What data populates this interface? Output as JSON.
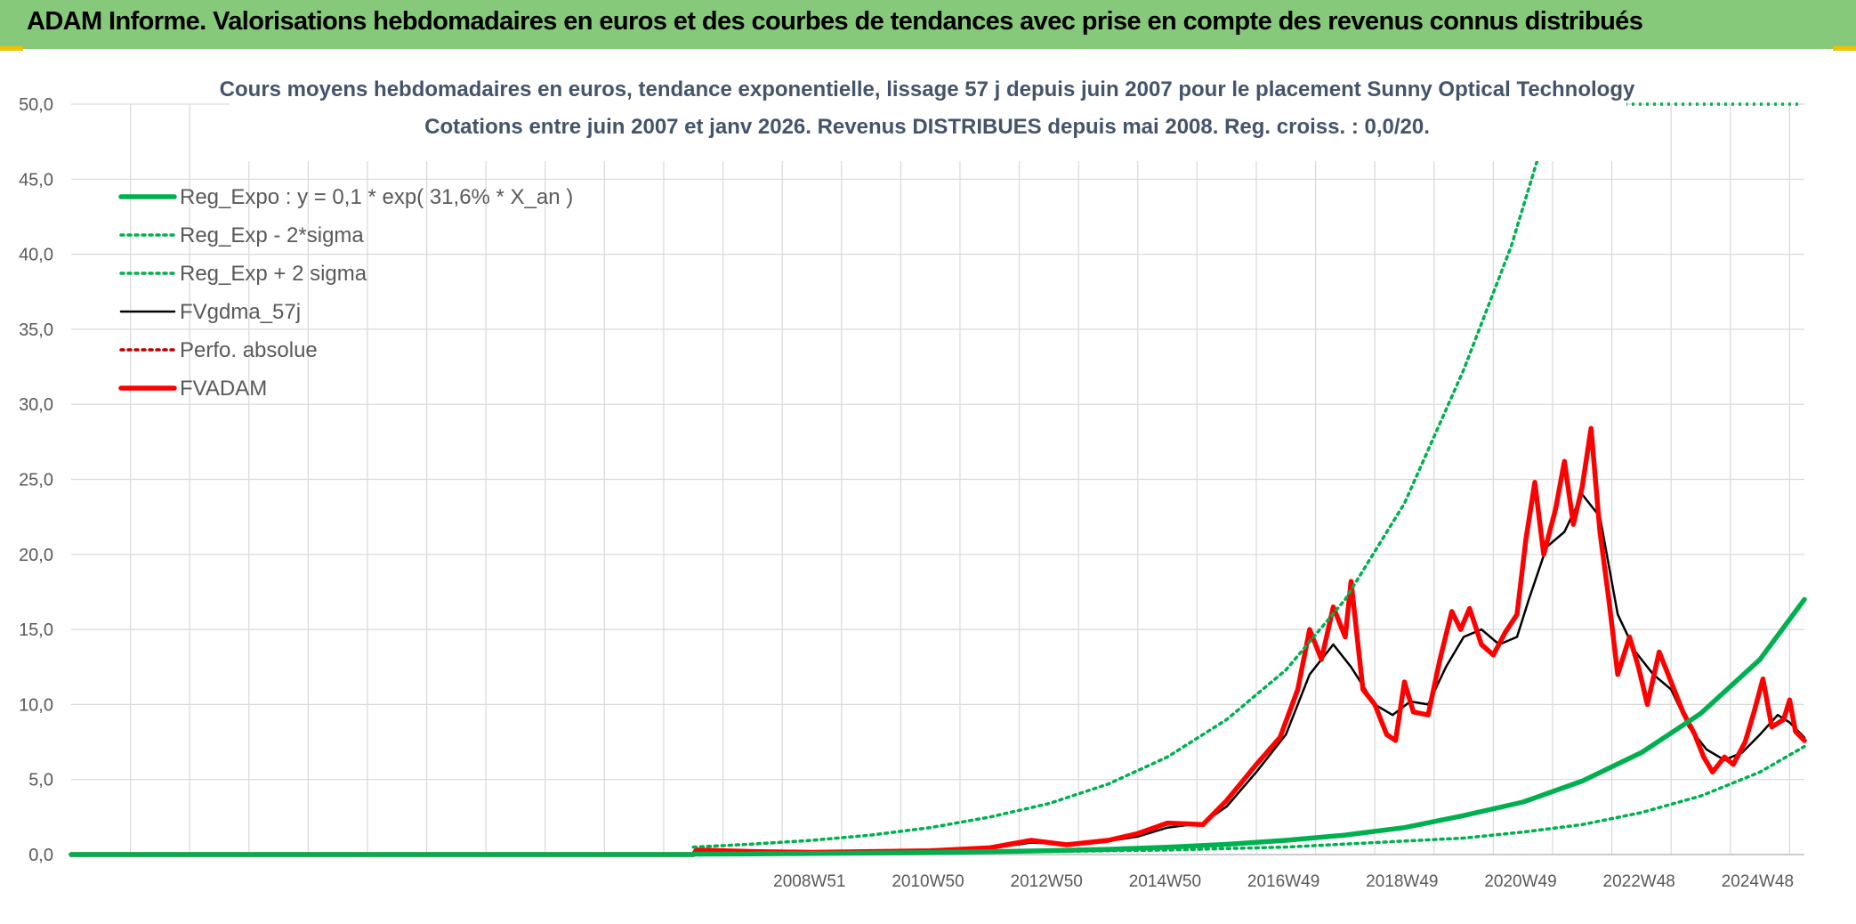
{
  "page": {
    "banner_title": "ADAM Informe. Valorisations hebdomadaires en euros et des courbes de tendances avec prise en compte des revenus connus distribués"
  },
  "colors": {
    "banner": "#86c97a",
    "grid": "#d9d9d9",
    "regression": "#00b050",
    "fvgdma": "#000000",
    "fvadam": "#ff0000",
    "perfo": "#c00000",
    "axis_text": "#595959",
    "title_text": "#44546a"
  },
  "chart_data": {
    "type": "line",
    "title": "Cours moyens hebdomadaires en euros, tendance exponentielle, lissage 57 j depuis juin 2007 pour le placement Sunny Optical Technology",
    "subtitle": "Cotations entre juin 2007 et janv 2026. Revenus DISTRIBUES depuis mai 2008. Reg. croiss. : 0,0/20.",
    "xlabel": "",
    "ylabel": "",
    "ylim": [
      0,
      50
    ],
    "xlim": [
      1996.5,
      2025.75
    ],
    "yticks": [
      "0,0",
      "5,0",
      "10,0",
      "15,0",
      "20,0",
      "25,0",
      "30,0",
      "35,0",
      "40,0",
      "45,0",
      "50,0"
    ],
    "xticks": [
      {
        "label": "2008W51",
        "x": 2008.96
      },
      {
        "label": "2010W50",
        "x": 2010.96
      },
      {
        "label": "2012W50",
        "x": 2012.96
      },
      {
        "label": "2014W50",
        "x": 2014.96
      },
      {
        "label": "2016W49",
        "x": 2016.96
      },
      {
        "label": "2018W49",
        "x": 2018.96
      },
      {
        "label": "2020W49",
        "x": 2020.96
      },
      {
        "label": "2022W48",
        "x": 2022.96
      },
      {
        "label": "2024W48",
        "x": 2024.96
      }
    ],
    "grid": true,
    "legend_position": "top-left",
    "series": [
      {
        "name": "Reg_Expo : y = 0,1 * exp( 31,6% *  X_an )",
        "style": "thick-solid",
        "color": "#00b050",
        "points": [
          [
            1996.5,
            0
          ],
          [
            2007.0,
            0
          ],
          [
            2007.0,
            0.03
          ],
          [
            2008,
            0.05
          ],
          [
            2009,
            0.07
          ],
          [
            2010,
            0.1
          ],
          [
            2011,
            0.13
          ],
          [
            2012,
            0.19
          ],
          [
            2013,
            0.26
          ],
          [
            2014,
            0.35
          ],
          [
            2015,
            0.49
          ],
          [
            2016,
            0.68
          ],
          [
            2017,
            0.95
          ],
          [
            2018,
            1.3
          ],
          [
            2019,
            1.8
          ],
          [
            2020,
            2.6
          ],
          [
            2021,
            3.5
          ],
          [
            2022,
            4.9
          ],
          [
            2023,
            6.8
          ],
          [
            2024,
            9.4
          ],
          [
            2025,
            13.0
          ],
          [
            2025.75,
            17.0
          ]
        ]
      },
      {
        "name": "Reg_Exp - 2*sigma",
        "style": "dotted",
        "color": "#00b050",
        "points": [
          [
            2007.0,
            0.02
          ],
          [
            2009,
            0.05
          ],
          [
            2011,
            0.1
          ],
          [
            2013,
            0.2
          ],
          [
            2015,
            0.3
          ],
          [
            2017,
            0.5
          ],
          [
            2019,
            0.9
          ],
          [
            2020,
            1.1
          ],
          [
            2021,
            1.5
          ],
          [
            2022,
            2.0
          ],
          [
            2023,
            2.8
          ],
          [
            2024,
            3.9
          ],
          [
            2025,
            5.5
          ],
          [
            2025.75,
            7.2
          ]
        ]
      },
      {
        "name": "Reg_Exp + 2 sigma",
        "style": "dotted",
        "color": "#00b050",
        "points": [
          [
            2007.0,
            0.5
          ],
          [
            2008,
            0.7
          ],
          [
            2009,
            0.95
          ],
          [
            2010,
            1.3
          ],
          [
            2011,
            1.8
          ],
          [
            2012,
            2.5
          ],
          [
            2013,
            3.4
          ],
          [
            2014,
            4.7
          ],
          [
            2015,
            6.5
          ],
          [
            2016,
            9.0
          ],
          [
            2017,
            12.3
          ],
          [
            2018,
            17.0
          ],
          [
            2019,
            23.4
          ],
          [
            2020,
            32.3
          ],
          [
            2020.8,
            40.5
          ],
          [
            2021.3,
            47.0
          ]
        ]
      },
      {
        "name": "FVgdma_57j",
        "style": "thin-solid",
        "color": "#000000",
        "points": [
          [
            1996.5,
            0
          ],
          [
            2007.0,
            0
          ],
          [
            2007.05,
            0.25
          ],
          [
            2008,
            0.2
          ],
          [
            2009,
            0.15
          ],
          [
            2010,
            0.2
          ],
          [
            2011,
            0.25
          ],
          [
            2012,
            0.4
          ],
          [
            2012.7,
            0.8
          ],
          [
            2013.3,
            0.7
          ],
          [
            2014,
            0.9
          ],
          [
            2014.5,
            1.2
          ],
          [
            2015,
            1.8
          ],
          [
            2015.6,
            2.1
          ],
          [
            2016,
            3.2
          ],
          [
            2016.5,
            5.5
          ],
          [
            2017,
            8.0
          ],
          [
            2017.4,
            12.0
          ],
          [
            2017.8,
            14.0
          ],
          [
            2018.1,
            12.5
          ],
          [
            2018.5,
            10.0
          ],
          [
            2018.8,
            9.3
          ],
          [
            2019.1,
            10.2
          ],
          [
            2019.4,
            10.0
          ],
          [
            2019.7,
            12.5
          ],
          [
            2020.0,
            14.5
          ],
          [
            2020.3,
            15.0
          ],
          [
            2020.6,
            14.0
          ],
          [
            2020.9,
            14.5
          ],
          [
            2021.1,
            17.0
          ],
          [
            2021.4,
            20.5
          ],
          [
            2021.7,
            21.5
          ],
          [
            2022.0,
            24.0
          ],
          [
            2022.3,
            22.5
          ],
          [
            2022.6,
            16.0
          ],
          [
            2022.9,
            13.5
          ],
          [
            2023.2,
            12.0
          ],
          [
            2023.5,
            11.0
          ],
          [
            2023.8,
            8.5
          ],
          [
            2024.1,
            7.0
          ],
          [
            2024.4,
            6.3
          ],
          [
            2024.7,
            6.8
          ],
          [
            2025.0,
            8.0
          ],
          [
            2025.3,
            9.3
          ],
          [
            2025.5,
            8.8
          ],
          [
            2025.75,
            7.8
          ]
        ]
      },
      {
        "name": "Perfo. absolue",
        "style": "dotted",
        "color": "#c00000",
        "points": []
      },
      {
        "name": "FVADAM",
        "style": "thick-solid",
        "color": "#ff0000",
        "points": [
          [
            1996.5,
            0
          ],
          [
            2007.0,
            0
          ],
          [
            2007.05,
            0.3
          ],
          [
            2008,
            0.2
          ],
          [
            2009,
            0.15
          ],
          [
            2010,
            0.2
          ],
          [
            2011,
            0.25
          ],
          [
            2012,
            0.45
          ],
          [
            2012.7,
            0.95
          ],
          [
            2013.3,
            0.65
          ],
          [
            2014,
            0.95
          ],
          [
            2014.5,
            1.4
          ],
          [
            2015,
            2.1
          ],
          [
            2015.6,
            2.0
          ],
          [
            2016,
            3.6
          ],
          [
            2016.5,
            6.0
          ],
          [
            2016.9,
            7.8
          ],
          [
            2017.2,
            11.0
          ],
          [
            2017.4,
            15.0
          ],
          [
            2017.6,
            13.0
          ],
          [
            2017.8,
            16.5
          ],
          [
            2018.0,
            14.5
          ],
          [
            2018.1,
            18.2
          ],
          [
            2018.3,
            11.0
          ],
          [
            2018.5,
            10.0
          ],
          [
            2018.7,
            8.0
          ],
          [
            2018.85,
            7.6
          ],
          [
            2019.0,
            11.5
          ],
          [
            2019.15,
            9.5
          ],
          [
            2019.4,
            9.3
          ],
          [
            2019.6,
            13.0
          ],
          [
            2019.8,
            16.2
          ],
          [
            2019.95,
            15.0
          ],
          [
            2020.1,
            16.4
          ],
          [
            2020.3,
            14.0
          ],
          [
            2020.5,
            13.3
          ],
          [
            2020.7,
            14.8
          ],
          [
            2020.9,
            16.0
          ],
          [
            2021.05,
            21.0
          ],
          [
            2021.2,
            24.8
          ],
          [
            2021.35,
            20.0
          ],
          [
            2021.55,
            23.0
          ],
          [
            2021.7,
            26.2
          ],
          [
            2021.85,
            22.0
          ],
          [
            2022.0,
            24.5
          ],
          [
            2022.15,
            28.4
          ],
          [
            2022.3,
            21.5
          ],
          [
            2022.45,
            17.0
          ],
          [
            2022.6,
            12.0
          ],
          [
            2022.8,
            14.5
          ],
          [
            2022.95,
            12.5
          ],
          [
            2023.1,
            10.0
          ],
          [
            2023.3,
            13.5
          ],
          [
            2023.5,
            11.5
          ],
          [
            2023.7,
            9.5
          ],
          [
            2023.9,
            8.0
          ],
          [
            2024.05,
            6.5
          ],
          [
            2024.2,
            5.5
          ],
          [
            2024.4,
            6.5
          ],
          [
            2024.55,
            6.0
          ],
          [
            2024.75,
            7.5
          ],
          [
            2024.9,
            9.5
          ],
          [
            2025.05,
            11.7
          ],
          [
            2025.2,
            8.5
          ],
          [
            2025.4,
            9.0
          ],
          [
            2025.5,
            10.3
          ],
          [
            2025.6,
            8.2
          ],
          [
            2025.75,
            7.6
          ]
        ]
      }
    ]
  }
}
